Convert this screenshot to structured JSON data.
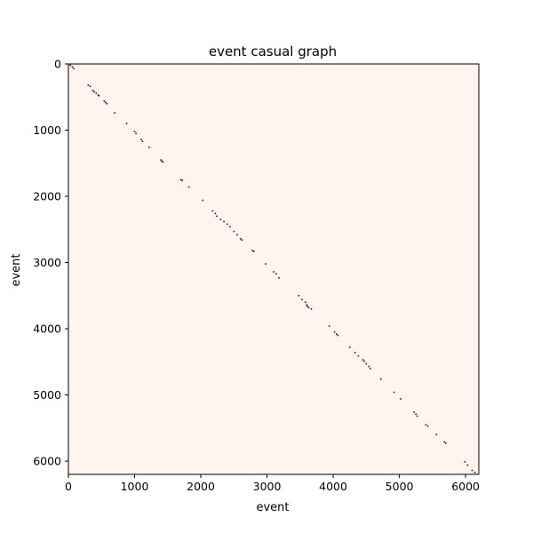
{
  "chart_data": {
    "type": "heatmap",
    "title": "event casual graph",
    "xlabel": "event",
    "ylabel": "event",
    "xlim": [
      0,
      6200
    ],
    "ylim": [
      6200,
      0
    ],
    "y_inverted": true,
    "x_ticks": [
      0,
      1000,
      2000,
      3000,
      4000,
      5000,
      6000
    ],
    "y_ticks": [
      0,
      1000,
      2000,
      3000,
      4000,
      5000,
      6000
    ],
    "background_color": "#fff5f0",
    "mark_color": "#67000d",
    "grid": false,
    "legend": "none",
    "edges": [
      [
        30,
        20
      ],
      [
        60,
        45
      ],
      [
        80,
        70
      ],
      [
        300,
        320
      ],
      [
        330,
        340
      ],
      [
        370,
        400
      ],
      [
        390,
        420
      ],
      [
        420,
        440
      ],
      [
        450,
        470
      ],
      [
        460,
        480
      ],
      [
        540,
        560
      ],
      [
        560,
        580
      ],
      [
        580,
        600
      ],
      [
        700,
        740
      ],
      [
        880,
        900
      ],
      [
        1000,
        1020
      ],
      [
        1020,
        1050
      ],
      [
        1100,
        1140
      ],
      [
        1120,
        1170
      ],
      [
        1220,
        1260
      ],
      [
        1400,
        1450
      ],
      [
        1410,
        1470
      ],
      [
        1430,
        1480
      ],
      [
        1700,
        1750
      ],
      [
        1720,
        1760
      ],
      [
        1820,
        1860
      ],
      [
        2030,
        2060
      ],
      [
        2180,
        2220
      ],
      [
        2220,
        2260
      ],
      [
        2240,
        2300
      ],
      [
        2300,
        2350
      ],
      [
        2350,
        2380
      ],
      [
        2400,
        2420
      ],
      [
        2440,
        2460
      ],
      [
        2500,
        2530
      ],
      [
        2550,
        2580
      ],
      [
        2600,
        2640
      ],
      [
        2620,
        2660
      ],
      [
        2780,
        2820
      ],
      [
        2800,
        2830
      ],
      [
        2980,
        3020
      ],
      [
        3100,
        3140
      ],
      [
        3140,
        3170
      ],
      [
        3180,
        3230
      ],
      [
        3480,
        3500
      ],
      [
        3530,
        3560
      ],
      [
        3580,
        3600
      ],
      [
        3600,
        3640
      ],
      [
        3610,
        3660
      ],
      [
        3630,
        3680
      ],
      [
        3670,
        3700
      ],
      [
        3940,
        3960
      ],
      [
        4020,
        4050
      ],
      [
        4050,
        4080
      ],
      [
        4070,
        4100
      ],
      [
        4250,
        4280
      ],
      [
        4330,
        4360
      ],
      [
        4380,
        4410
      ],
      [
        4450,
        4470
      ],
      [
        4470,
        4490
      ],
      [
        4500,
        4530
      ],
      [
        4540,
        4570
      ],
      [
        4560,
        4600
      ],
      [
        4720,
        4760
      ],
      [
        4920,
        4960
      ],
      [
        5020,
        5060
      ],
      [
        5220,
        5260
      ],
      [
        5250,
        5290
      ],
      [
        5270,
        5320
      ],
      [
        5400,
        5450
      ],
      [
        5430,
        5470
      ],
      [
        5560,
        5600
      ],
      [
        5680,
        5710
      ],
      [
        5700,
        5730
      ],
      [
        5990,
        6010
      ],
      [
        6030,
        6060
      ],
      [
        6100,
        6140
      ],
      [
        6140,
        6170
      ]
    ]
  }
}
